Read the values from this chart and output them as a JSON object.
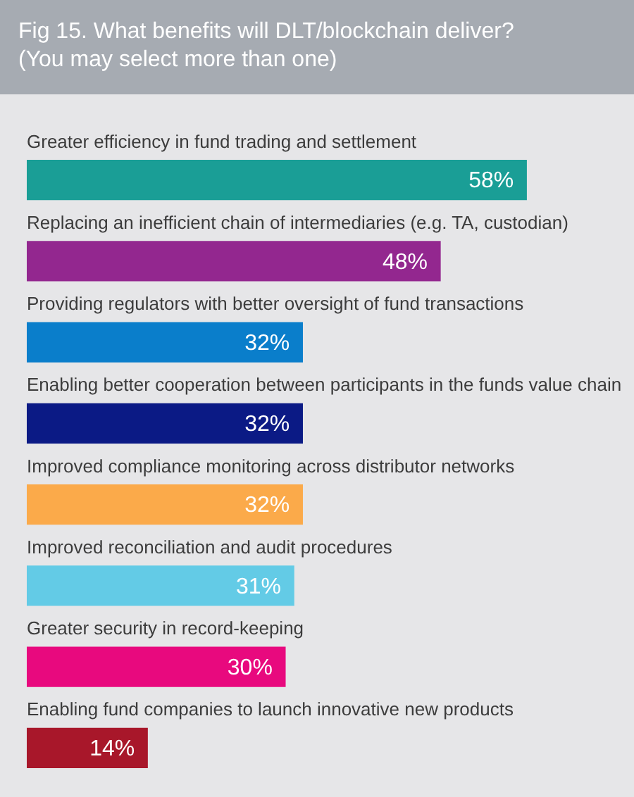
{
  "chart_data": {
    "type": "bar",
    "orientation": "horizontal",
    "title": "Fig 15. What benefits will DLT/blockchain deliver?",
    "subtitle": "(You may select more than one)",
    "categories": [
      "Greater efficiency in fund trading and settlement",
      "Replacing an inefficient chain of intermediaries (e.g. TA, custodian)",
      "Providing regulators with better oversight of fund transactions",
      "Enabling better cooperation between participants in the funds value chain",
      "Improved compliance monitoring across distributor networks",
      "Improved reconciliation and audit procedures",
      "Greater security in record-keeping",
      "Enabling fund companies to launch innovative new products"
    ],
    "values": [
      58,
      48,
      32,
      32,
      32,
      31,
      30,
      14
    ],
    "colors": [
      "#1a9e96",
      "#93278f",
      "#0a7ecb",
      "#0b1a85",
      "#fbaa4a",
      "#63cbe6",
      "#e8097e",
      "#a8172a"
    ],
    "value_labels": [
      "58%",
      "48%",
      "32%",
      "32%",
      "32%",
      "31%",
      "30%",
      "14%"
    ],
    "xlim": [
      0,
      70
    ],
    "tick_labels": "y"
  }
}
